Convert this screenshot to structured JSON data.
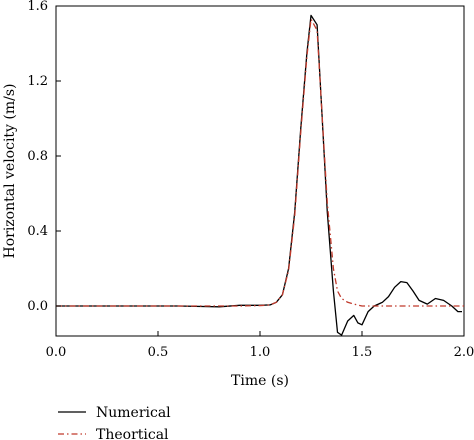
{
  "chart_data": {
    "type": "line",
    "xlabel": "Time (s)",
    "ylabel": "Horizontal velocity (m/s)",
    "xlim": [
      0.0,
      2.0
    ],
    "ylim": [
      -0.16,
      1.6
    ],
    "x_ticks": [
      0.0,
      0.5,
      1.0,
      1.5,
      2.0
    ],
    "x_tick_labels": [
      "0.0",
      "0.5",
      "1.0",
      "1.5",
      "2.0"
    ],
    "y_ticks": [
      0.0,
      0.4,
      0.8,
      1.2,
      1.6
    ],
    "y_tick_labels": [
      "0.0",
      "0.4",
      "0.8",
      "1.2",
      "1.6"
    ],
    "grid": false,
    "legend_position": "bottom-left, below plot",
    "series": [
      {
        "name": "Numerical",
        "color": "#000000",
        "style": "solid",
        "x": [
          0.0,
          0.2,
          0.4,
          0.6,
          0.8,
          0.9,
          1.0,
          1.05,
          1.08,
          1.11,
          1.14,
          1.17,
          1.2,
          1.23,
          1.25,
          1.28,
          1.3,
          1.33,
          1.36,
          1.38,
          1.4,
          1.43,
          1.46,
          1.48,
          1.5,
          1.53,
          1.56,
          1.6,
          1.63,
          1.66,
          1.69,
          1.72,
          1.75,
          1.78,
          1.82,
          1.86,
          1.9,
          1.94,
          1.97,
          1.99
        ],
        "y": [
          0.0,
          0.0,
          0.0,
          0.0,
          -0.004,
          0.004,
          0.004,
          0.006,
          0.02,
          0.06,
          0.2,
          0.5,
          0.95,
          1.35,
          1.55,
          1.5,
          1.1,
          0.5,
          0.08,
          -0.14,
          -0.155,
          -0.08,
          -0.05,
          -0.09,
          -0.1,
          -0.03,
          0.0,
          0.02,
          0.05,
          0.1,
          0.13,
          0.125,
          0.08,
          0.03,
          0.01,
          0.04,
          0.03,
          0.0,
          -0.03,
          -0.03
        ]
      },
      {
        "name": "Theortical",
        "color": "#c0392b",
        "style": "dash-dot",
        "x": [
          0.0,
          0.2,
          0.4,
          0.6,
          0.8,
          0.9,
          1.0,
          1.05,
          1.08,
          1.11,
          1.14,
          1.17,
          1.2,
          1.23,
          1.25,
          1.28,
          1.3,
          1.33,
          1.36,
          1.38,
          1.4,
          1.43,
          1.46,
          1.5,
          1.6,
          1.7,
          1.8,
          1.9,
          2.0
        ],
        "y": [
          0.0,
          0.0,
          0.0,
          0.0,
          0.0,
          0.0,
          0.002,
          0.006,
          0.02,
          0.06,
          0.19,
          0.48,
          0.93,
          1.33,
          1.53,
          1.47,
          1.1,
          0.55,
          0.2,
          0.08,
          0.04,
          0.02,
          0.01,
          0.0,
          0.0,
          0.0,
          0.0,
          0.0,
          0.0
        ]
      }
    ]
  }
}
